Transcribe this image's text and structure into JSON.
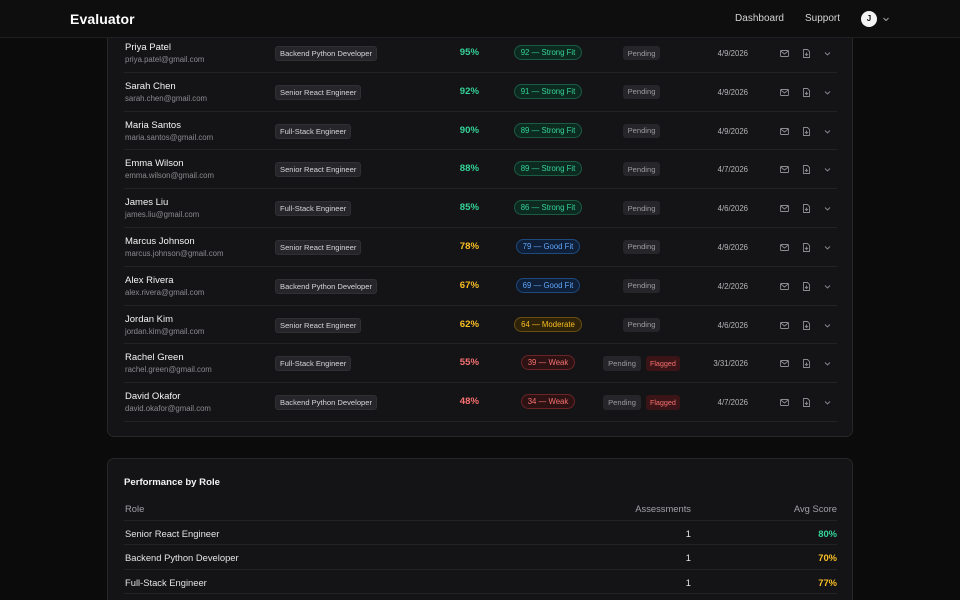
{
  "header": {
    "brand": "Evaluator",
    "nav": [
      "Dashboard",
      "Support"
    ],
    "avatar_initial": "J"
  },
  "colors": {
    "green": "#34d399",
    "amber": "#fbbf24",
    "red": "#f87171",
    "blue": "#60a5fa"
  },
  "candidates": [
    {
      "name": "Priya Patel",
      "email": "priya.patel@gmail.com",
      "role": "Backend Python Developer",
      "percent": "95%",
      "percent_color": "#34d399",
      "fit": "92 — Strong Fit",
      "fit_level": "strong",
      "status": "Pending",
      "flagged": "",
      "date": "4/9/2026"
    },
    {
      "name": "Sarah Chen",
      "email": "sarah.chen@gmail.com",
      "role": "Senior React Engineer",
      "percent": "92%",
      "percent_color": "#34d399",
      "fit": "91 — Strong Fit",
      "fit_level": "strong",
      "status": "Pending",
      "flagged": "",
      "date": "4/9/2026"
    },
    {
      "name": "Maria Santos",
      "email": "maria.santos@gmail.com",
      "role": "Full-Stack Engineer",
      "percent": "90%",
      "percent_color": "#34d399",
      "fit": "89 — Strong Fit",
      "fit_level": "strong",
      "status": "Pending",
      "flagged": "",
      "date": "4/9/2026"
    },
    {
      "name": "Emma Wilson",
      "email": "emma.wilson@gmail.com",
      "role": "Senior React Engineer",
      "percent": "88%",
      "percent_color": "#34d399",
      "fit": "89 — Strong Fit",
      "fit_level": "strong",
      "status": "Pending",
      "flagged": "",
      "date": "4/7/2026"
    },
    {
      "name": "James Liu",
      "email": "james.liu@gmail.com",
      "role": "Full-Stack Engineer",
      "percent": "85%",
      "percent_color": "#34d399",
      "fit": "86 — Strong Fit",
      "fit_level": "strong",
      "status": "Pending",
      "flagged": "",
      "date": "4/6/2026"
    },
    {
      "name": "Marcus Johnson",
      "email": "marcus.johnson@gmail.com",
      "role": "Senior React Engineer",
      "percent": "78%",
      "percent_color": "#fbbf24",
      "fit": "79 — Good Fit",
      "fit_level": "good",
      "status": "Pending",
      "flagged": "",
      "date": "4/9/2026"
    },
    {
      "name": "Alex Rivera",
      "email": "alex.rivera@gmail.com",
      "role": "Backend Python Developer",
      "percent": "67%",
      "percent_color": "#fbbf24",
      "fit": "69 — Good Fit",
      "fit_level": "good",
      "status": "Pending",
      "flagged": "",
      "date": "4/2/2026"
    },
    {
      "name": "Jordan Kim",
      "email": "jordan.kim@gmail.com",
      "role": "Senior React Engineer",
      "percent": "62%",
      "percent_color": "#fbbf24",
      "fit": "64 — Moderate",
      "fit_level": "mod",
      "status": "Pending",
      "flagged": "",
      "date": "4/6/2026"
    },
    {
      "name": "Rachel Green",
      "email": "rachel.green@gmail.com",
      "role": "Full-Stack Engineer",
      "percent": "55%",
      "percent_color": "#f87171",
      "fit": "39 — Weak",
      "fit_level": "weak",
      "status": "Pending",
      "flagged": "Flagged",
      "date": "3/31/2026"
    },
    {
      "name": "David Okafor",
      "email": "david.okafor@gmail.com",
      "role": "Backend Python Developer",
      "percent": "48%",
      "percent_color": "#f87171",
      "fit": "34 — Weak",
      "fit_level": "weak",
      "status": "Pending",
      "flagged": "Flagged",
      "date": "4/7/2026"
    }
  ],
  "performance": {
    "title": "Performance by Role",
    "columns": [
      "Role",
      "Assessments",
      "Avg Score"
    ],
    "rows": [
      {
        "role": "Senior React Engineer",
        "assessments": "1",
        "avg": "80%",
        "avg_color": "#34d399"
      },
      {
        "role": "Backend Python Developer",
        "assessments": "1",
        "avg": "70%",
        "avg_color": "#fbbf24"
      },
      {
        "role": "Full-Stack Engineer",
        "assessments": "1",
        "avg": "77%",
        "avg_color": "#fbbf24"
      }
    ]
  }
}
